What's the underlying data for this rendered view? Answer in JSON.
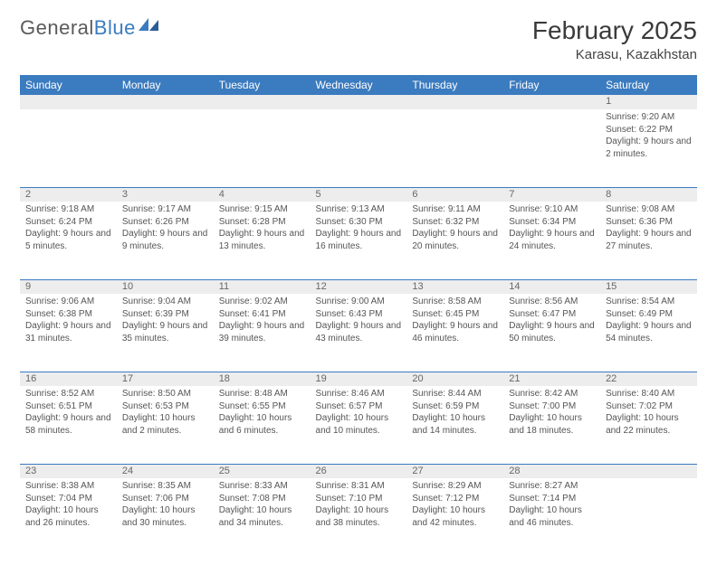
{
  "logo": {
    "text1": "General",
    "text2": "Blue"
  },
  "title": "February 2025",
  "location": "Karasu, Kazakhstan",
  "colors": {
    "header_bg": "#3b7bbf",
    "header_text": "#ffffff",
    "daynum_bg": "#ededed",
    "text": "#555555",
    "page_bg": "#ffffff"
  },
  "columns": [
    "Sunday",
    "Monday",
    "Tuesday",
    "Wednesday",
    "Thursday",
    "Friday",
    "Saturday"
  ],
  "weeks": [
    [
      {
        "n": "",
        "lines": []
      },
      {
        "n": "",
        "lines": []
      },
      {
        "n": "",
        "lines": []
      },
      {
        "n": "",
        "lines": []
      },
      {
        "n": "",
        "lines": []
      },
      {
        "n": "",
        "lines": []
      },
      {
        "n": "1",
        "lines": [
          "Sunrise: 9:20 AM",
          "Sunset: 6:22 PM",
          "Daylight: 9 hours and 2 minutes."
        ]
      }
    ],
    [
      {
        "n": "2",
        "lines": [
          "Sunrise: 9:18 AM",
          "Sunset: 6:24 PM",
          "Daylight: 9 hours and 5 minutes."
        ]
      },
      {
        "n": "3",
        "lines": [
          "Sunrise: 9:17 AM",
          "Sunset: 6:26 PM",
          "Daylight: 9 hours and 9 minutes."
        ]
      },
      {
        "n": "4",
        "lines": [
          "Sunrise: 9:15 AM",
          "Sunset: 6:28 PM",
          "Daylight: 9 hours and 13 minutes."
        ]
      },
      {
        "n": "5",
        "lines": [
          "Sunrise: 9:13 AM",
          "Sunset: 6:30 PM",
          "Daylight: 9 hours and 16 minutes."
        ]
      },
      {
        "n": "6",
        "lines": [
          "Sunrise: 9:11 AM",
          "Sunset: 6:32 PM",
          "Daylight: 9 hours and 20 minutes."
        ]
      },
      {
        "n": "7",
        "lines": [
          "Sunrise: 9:10 AM",
          "Sunset: 6:34 PM",
          "Daylight: 9 hours and 24 minutes."
        ]
      },
      {
        "n": "8",
        "lines": [
          "Sunrise: 9:08 AM",
          "Sunset: 6:36 PM",
          "Daylight: 9 hours and 27 minutes."
        ]
      }
    ],
    [
      {
        "n": "9",
        "lines": [
          "Sunrise: 9:06 AM",
          "Sunset: 6:38 PM",
          "Daylight: 9 hours and 31 minutes."
        ]
      },
      {
        "n": "10",
        "lines": [
          "Sunrise: 9:04 AM",
          "Sunset: 6:39 PM",
          "Daylight: 9 hours and 35 minutes."
        ]
      },
      {
        "n": "11",
        "lines": [
          "Sunrise: 9:02 AM",
          "Sunset: 6:41 PM",
          "Daylight: 9 hours and 39 minutes."
        ]
      },
      {
        "n": "12",
        "lines": [
          "Sunrise: 9:00 AM",
          "Sunset: 6:43 PM",
          "Daylight: 9 hours and 43 minutes."
        ]
      },
      {
        "n": "13",
        "lines": [
          "Sunrise: 8:58 AM",
          "Sunset: 6:45 PM",
          "Daylight: 9 hours and 46 minutes."
        ]
      },
      {
        "n": "14",
        "lines": [
          "Sunrise: 8:56 AM",
          "Sunset: 6:47 PM",
          "Daylight: 9 hours and 50 minutes."
        ]
      },
      {
        "n": "15",
        "lines": [
          "Sunrise: 8:54 AM",
          "Sunset: 6:49 PM",
          "Daylight: 9 hours and 54 minutes."
        ]
      }
    ],
    [
      {
        "n": "16",
        "lines": [
          "Sunrise: 8:52 AM",
          "Sunset: 6:51 PM",
          "Daylight: 9 hours and 58 minutes."
        ]
      },
      {
        "n": "17",
        "lines": [
          "Sunrise: 8:50 AM",
          "Sunset: 6:53 PM",
          "Daylight: 10 hours and 2 minutes."
        ]
      },
      {
        "n": "18",
        "lines": [
          "Sunrise: 8:48 AM",
          "Sunset: 6:55 PM",
          "Daylight: 10 hours and 6 minutes."
        ]
      },
      {
        "n": "19",
        "lines": [
          "Sunrise: 8:46 AM",
          "Sunset: 6:57 PM",
          "Daylight: 10 hours and 10 minutes."
        ]
      },
      {
        "n": "20",
        "lines": [
          "Sunrise: 8:44 AM",
          "Sunset: 6:59 PM",
          "Daylight: 10 hours and 14 minutes."
        ]
      },
      {
        "n": "21",
        "lines": [
          "Sunrise: 8:42 AM",
          "Sunset: 7:00 PM",
          "Daylight: 10 hours and 18 minutes."
        ]
      },
      {
        "n": "22",
        "lines": [
          "Sunrise: 8:40 AM",
          "Sunset: 7:02 PM",
          "Daylight: 10 hours and 22 minutes."
        ]
      }
    ],
    [
      {
        "n": "23",
        "lines": [
          "Sunrise: 8:38 AM",
          "Sunset: 7:04 PM",
          "Daylight: 10 hours and 26 minutes."
        ]
      },
      {
        "n": "24",
        "lines": [
          "Sunrise: 8:35 AM",
          "Sunset: 7:06 PM",
          "Daylight: 10 hours and 30 minutes."
        ]
      },
      {
        "n": "25",
        "lines": [
          "Sunrise: 8:33 AM",
          "Sunset: 7:08 PM",
          "Daylight: 10 hours and 34 minutes."
        ]
      },
      {
        "n": "26",
        "lines": [
          "Sunrise: 8:31 AM",
          "Sunset: 7:10 PM",
          "Daylight: 10 hours and 38 minutes."
        ]
      },
      {
        "n": "27",
        "lines": [
          "Sunrise: 8:29 AM",
          "Sunset: 7:12 PM",
          "Daylight: 10 hours and 42 minutes."
        ]
      },
      {
        "n": "28",
        "lines": [
          "Sunrise: 8:27 AM",
          "Sunset: 7:14 PM",
          "Daylight: 10 hours and 46 minutes."
        ]
      },
      {
        "n": "",
        "lines": []
      }
    ]
  ]
}
